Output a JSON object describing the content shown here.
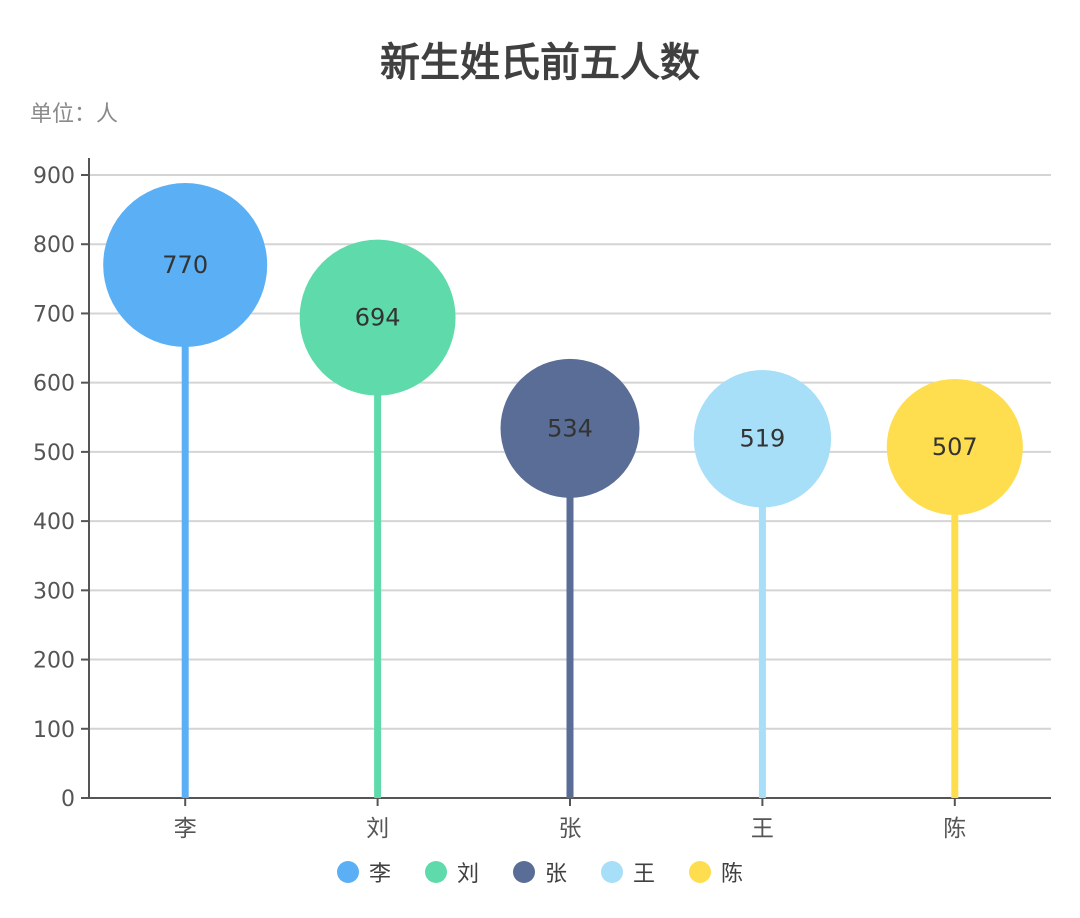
{
  "chart_data": {
    "type": "lollipop",
    "title": "新生姓氏前五人数",
    "subtitle": "单位：人",
    "categories": [
      "李",
      "刘",
      "张",
      "王",
      "陈"
    ],
    "values": [
      770,
      694,
      534,
      519,
      507
    ],
    "colors": [
      "#5aaff5",
      "#5fdbab",
      "#5a6d96",
      "#a7def8",
      "#fede4e"
    ],
    "ylim": [
      0,
      900
    ],
    "yticks": [
      0,
      100,
      200,
      300,
      400,
      500,
      600,
      700,
      800,
      900
    ],
    "grid": true,
    "legend": "bottom-center"
  }
}
